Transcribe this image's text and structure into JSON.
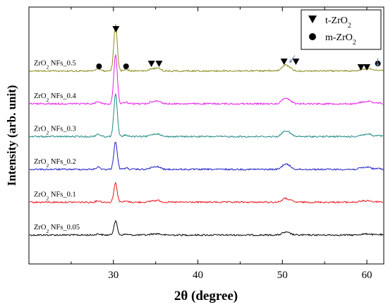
{
  "chart_data": {
    "type": "line",
    "xlabel": "2θ (degree)",
    "ylabel": "Intensity (arb. unit)",
    "xlim": [
      20,
      62
    ],
    "x_ticks": [
      30,
      40,
      50,
      60
    ],
    "y_ticks_shown": false,
    "grid": false,
    "legend": {
      "placement": "top-right",
      "entries": [
        {
          "marker": "triangle-down",
          "label_base": "t-ZrO",
          "label_sub": "2"
        },
        {
          "marker": "circle",
          "label_base": "m-ZrO",
          "label_sub": "2"
        }
      ]
    },
    "series": [
      {
        "name_base": "ZrO",
        "name_sub": "2",
        "name_rest": " NFs_0.05",
        "color": "#000000",
        "baseline": 0.0,
        "peak_scale": 0.55
      },
      {
        "name_base": "ZrO",
        "name_sub": "2",
        "name_rest": " NFs_0.1",
        "color": "#e8141c",
        "baseline": 1.0,
        "peak_scale": 0.75
      },
      {
        "name_base": "ZrO",
        "name_sub": "2",
        "name_rest": " NFs_0.2",
        "color": "#1f1fc8",
        "baseline": 2.0,
        "peak_scale": 1.1
      },
      {
        "name_base": "ZrO",
        "name_sub": "2",
        "name_rest": " NFs_0.3",
        "color": "#1f8a86",
        "baseline": 3.0,
        "peak_scale": 1.7
      },
      {
        "name_base": "ZrO",
        "name_sub": "2",
        "name_rest": " NFs_0.4",
        "color": "#e81ee8",
        "baseline": 4.0,
        "peak_scale": 1.95
      },
      {
        "name_base": "ZrO",
        "name_sub": "2",
        "name_rest": " NFs_0.5",
        "color": "#8c8c1e",
        "baseline": 5.0,
        "peak_scale": 1.85
      }
    ],
    "peaks": [
      {
        "x": 28.2,
        "h": 0.08,
        "w": 0.25,
        "phase": "m"
      },
      {
        "x": 30.25,
        "h": 1.0,
        "w": 0.2,
        "phase": "t"
      },
      {
        "x": 31.5,
        "h": 0.05,
        "w": 0.25,
        "phase": "m"
      },
      {
        "x": 34.6,
        "h": 0.07,
        "w": 0.3,
        "phase": "t"
      },
      {
        "x": 35.3,
        "h": 0.09,
        "w": 0.3,
        "phase": "t"
      },
      {
        "x": 50.3,
        "h": 0.18,
        "w": 0.35,
        "phase": "t"
      },
      {
        "x": 50.9,
        "h": 0.08,
        "w": 0.3,
        "phase": "t"
      },
      {
        "x": 59.4,
        "h": 0.05,
        "w": 0.35,
        "phase": "t"
      },
      {
        "x": 60.2,
        "h": 0.08,
        "w": 0.35,
        "phase": "t"
      },
      {
        "x": 61.4,
        "h": 0.03,
        "w": 0.3,
        "phase": "m"
      }
    ],
    "annotations": [
      {
        "marker": "triangle-down",
        "x": 30.3
      },
      {
        "marker": "circle",
        "x": 28.3
      },
      {
        "marker": "circle",
        "x": 31.5
      },
      {
        "marker": "triangle-down",
        "x": 34.5
      },
      {
        "marker": "triangle-down",
        "x": 35.4
      },
      {
        "marker": "triangle-down",
        "x": 50.2
      },
      {
        "marker": "triangle-down",
        "x": 51.6
      },
      {
        "marker": "triangle-down",
        "x": 59.3
      },
      {
        "marker": "triangle-down",
        "x": 60.0
      },
      {
        "marker": "circle",
        "x": 61.3
      }
    ],
    "arrows": [
      {
        "x": 50.8
      },
      {
        "x": 61.2
      }
    ]
  }
}
